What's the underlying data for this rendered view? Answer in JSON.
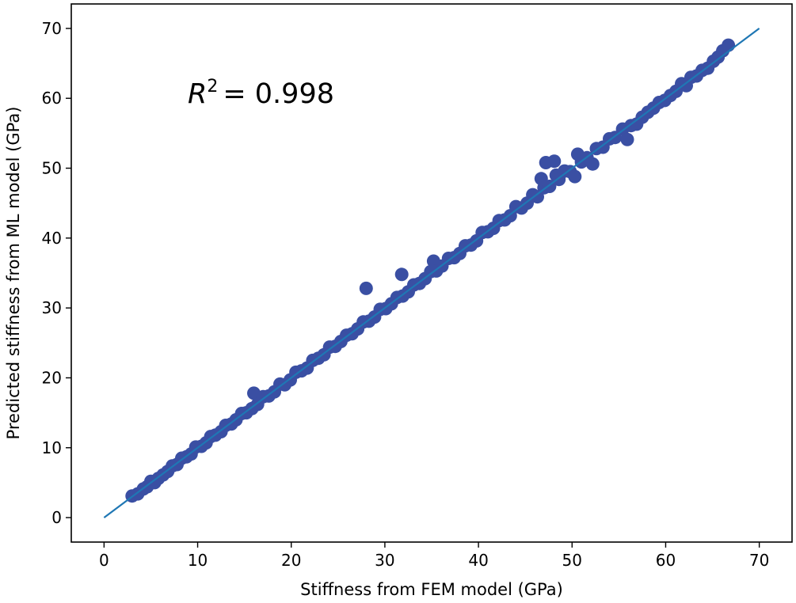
{
  "chart_data": {
    "type": "scatter",
    "title": "",
    "xlabel": "Stiffness from FEM model (GPa)",
    "ylabel": "Predicted stiffness from ML model (GPa)",
    "xlim": [
      -3.5,
      73.5
    ],
    "ylim": [
      -3.5,
      73.5
    ],
    "xticks": [
      0,
      10,
      20,
      30,
      40,
      50,
      60,
      70
    ],
    "yticks": [
      0,
      10,
      20,
      30,
      40,
      50,
      60,
      70
    ],
    "grid": false,
    "legend": "none",
    "annotation": {
      "prefix": "R",
      "superscript": "2",
      "value": "= 0.998"
    },
    "reference_line": {
      "name": "y = x",
      "x": [
        0,
        70
      ],
      "y": [
        0,
        70
      ],
      "color": "#1f77b4"
    },
    "marker_color": "#3a4fa3",
    "points": [
      [
        3.0,
        3.1
      ],
      [
        3.6,
        3.4
      ],
      [
        4.2,
        4.1
      ],
      [
        4.6,
        4.4
      ],
      [
        5.0,
        5.2
      ],
      [
        5.4,
        5.0
      ],
      [
        5.8,
        5.6
      ],
      [
        6.3,
        6.1
      ],
      [
        6.8,
        6.6
      ],
      [
        7.3,
        7.4
      ],
      [
        7.8,
        7.6
      ],
      [
        8.3,
        8.5
      ],
      [
        8.8,
        8.7
      ],
      [
        9.3,
        9.1
      ],
      [
        9.8,
        10.1
      ],
      [
        10.4,
        10.2
      ],
      [
        10.9,
        10.7
      ],
      [
        11.4,
        11.6
      ],
      [
        11.9,
        11.8
      ],
      [
        12.5,
        12.3
      ],
      [
        13.0,
        13.2
      ],
      [
        13.6,
        13.4
      ],
      [
        14.1,
        14.0
      ],
      [
        14.7,
        14.9
      ],
      [
        15.2,
        15.0
      ],
      [
        15.8,
        15.6
      ],
      [
        16.0,
        17.8
      ],
      [
        16.4,
        16.2
      ],
      [
        17.0,
        17.3
      ],
      [
        17.6,
        17.4
      ],
      [
        18.2,
        18.0
      ],
      [
        18.8,
        19.1
      ],
      [
        19.3,
        19.0
      ],
      [
        19.9,
        19.7
      ],
      [
        20.5,
        20.8
      ],
      [
        21.1,
        21.0
      ],
      [
        21.7,
        21.4
      ],
      [
        22.3,
        22.5
      ],
      [
        22.9,
        22.8
      ],
      [
        23.5,
        23.3
      ],
      [
        24.1,
        24.4
      ],
      [
        24.7,
        24.5
      ],
      [
        25.3,
        25.2
      ],
      [
        25.9,
        26.1
      ],
      [
        26.5,
        26.3
      ],
      [
        27.1,
        27.0
      ],
      [
        27.7,
        28.0
      ],
      [
        28.0,
        32.8
      ],
      [
        28.3,
        28.1
      ],
      [
        28.9,
        28.7
      ],
      [
        29.5,
        29.8
      ],
      [
        30.1,
        29.9
      ],
      [
        30.7,
        30.6
      ],
      [
        31.3,
        31.5
      ],
      [
        31.8,
        34.8
      ],
      [
        31.9,
        31.7
      ],
      [
        32.5,
        32.3
      ],
      [
        33.1,
        33.3
      ],
      [
        33.7,
        33.5
      ],
      [
        34.3,
        34.2
      ],
      [
        34.9,
        35.2
      ],
      [
        35.2,
        36.7
      ],
      [
        35.5,
        35.3
      ],
      [
        36.1,
        36.0
      ],
      [
        36.8,
        37.1
      ],
      [
        37.4,
        37.2
      ],
      [
        38.0,
        37.8
      ],
      [
        38.6,
        38.9
      ],
      [
        39.2,
        39.0
      ],
      [
        39.8,
        39.6
      ],
      [
        40.4,
        40.8
      ],
      [
        41.0,
        40.9
      ],
      [
        41.6,
        41.4
      ],
      [
        42.2,
        42.5
      ],
      [
        42.8,
        42.6
      ],
      [
        43.4,
        43.2
      ],
      [
        44.0,
        44.5
      ],
      [
        44.6,
        44.3
      ],
      [
        45.2,
        45.0
      ],
      [
        45.8,
        46.2
      ],
      [
        46.3,
        45.9
      ],
      [
        46.7,
        48.5
      ],
      [
        47.0,
        47.2
      ],
      [
        47.2,
        50.8
      ],
      [
        47.6,
        47.4
      ],
      [
        48.1,
        51.0
      ],
      [
        48.3,
        49.0
      ],
      [
        48.6,
        48.4
      ],
      [
        49.2,
        49.6
      ],
      [
        49.8,
        49.5
      ],
      [
        50.3,
        48.8
      ],
      [
        50.6,
        52.0
      ],
      [
        51.0,
        50.9
      ],
      [
        51.6,
        51.5
      ],
      [
        52.2,
        50.6
      ],
      [
        52.6,
        52.8
      ],
      [
        53.3,
        53.0
      ],
      [
        54.0,
        54.2
      ],
      [
        54.6,
        54.4
      ],
      [
        55.4,
        55.6
      ],
      [
        55.9,
        54.1
      ],
      [
        56.3,
        56.1
      ],
      [
        56.9,
        56.3
      ],
      [
        57.5,
        57.3
      ],
      [
        58.1,
        58.0
      ],
      [
        58.7,
        58.6
      ],
      [
        59.3,
        59.4
      ],
      [
        59.9,
        59.7
      ],
      [
        60.5,
        60.4
      ],
      [
        61.1,
        61.0
      ],
      [
        61.7,
        62.1
      ],
      [
        62.2,
        61.8
      ],
      [
        62.7,
        63.0
      ],
      [
        63.3,
        63.2
      ],
      [
        63.9,
        64.0
      ],
      [
        64.5,
        64.3
      ],
      [
        65.1,
        65.3
      ],
      [
        65.6,
        65.9
      ],
      [
        66.1,
        66.8
      ],
      [
        66.7,
        67.6
      ]
    ]
  }
}
